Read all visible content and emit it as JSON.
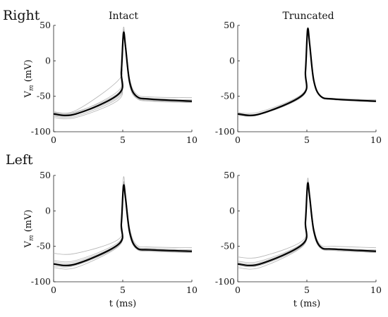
{
  "figure": {
    "row_titles": [
      "Right",
      "Left"
    ],
    "col_titles": [
      "Intact",
      "Truncated"
    ]
  },
  "chart_data": [
    {
      "type": "line",
      "row": 0,
      "col": 0,
      "title": "Intact",
      "row_title": "Right",
      "xlabel": "",
      "ylabel": "V_m (mV)",
      "xlim": [
        0,
        10
      ],
      "ylim": [
        -100,
        50
      ],
      "xticks": [
        "0",
        "5",
        "10"
      ],
      "yticks": [
        "50",
        "0",
        "-50",
        "-100"
      ],
      "series": [
        {
          "role": "mean",
          "x": [
            0,
            1.6,
            4.7,
            4.9,
            5.05,
            5.2,
            5.5,
            6.0,
            7.0,
            10
          ],
          "y": [
            -75,
            -75,
            -47,
            -15,
            39,
            20,
            -30,
            -50,
            -54,
            -57
          ]
        }
      ],
      "trials": [
        {
          "x": [
            0,
            1.6,
            4.7,
            4.9,
            5.05,
            5.2,
            5.5,
            6.0,
            7.0,
            10
          ],
          "y": [
            -72,
            -70,
            -27,
            0,
            47,
            25,
            -25,
            -47,
            -51,
            -52
          ]
        },
        {
          "x": [
            0,
            1.6,
            4.7,
            4.9,
            5.05,
            5.2,
            5.5,
            6.0,
            7.0,
            10
          ],
          "y": [
            -74,
            -73,
            -42,
            -10,
            43,
            22,
            -28,
            -49,
            -53,
            -55
          ]
        },
        {
          "x": [
            0,
            1.6,
            4.7,
            4.9,
            5.05,
            5.2,
            5.5,
            6.0,
            7.0,
            10
          ],
          "y": [
            -77,
            -76,
            -50,
            -20,
            37,
            18,
            -32,
            -51,
            -55,
            -57
          ]
        },
        {
          "x": [
            0,
            1.6,
            4.7,
            4.9,
            5.05,
            5.2,
            5.5,
            6.0,
            7.0,
            10
          ],
          "y": [
            -78,
            -78,
            -52,
            -22,
            35,
            17,
            -33,
            -52,
            -56,
            -58
          ]
        },
        {
          "x": [
            0,
            1.6,
            4.7,
            4.9,
            5.05,
            5.2,
            5.5,
            6.0,
            7.0,
            10
          ],
          "y": [
            -80,
            -80,
            -55,
            -25,
            33,
            15,
            -35,
            -53,
            -57,
            -59
          ]
        },
        {
          "x": [
            0,
            1.6,
            4.7,
            4.9,
            5.05,
            5.2,
            5.5,
            6.0,
            7.0,
            10
          ],
          "y": [
            -73,
            -72,
            -45,
            -12,
            41,
            21,
            -29,
            -50,
            -54,
            -56
          ]
        },
        {
          "x": [
            0,
            1.6,
            4.7,
            4.9,
            5.05,
            5.2,
            5.5,
            6.0,
            7.0,
            10
          ],
          "y": [
            -76,
            -75,
            -48,
            -18,
            39,
            19,
            -30,
            -50,
            -55,
            -57
          ]
        }
      ]
    },
    {
      "type": "line",
      "row": 0,
      "col": 1,
      "title": "Truncated",
      "row_title": "Right",
      "xlabel": "",
      "ylabel": "",
      "xlim": [
        0,
        10
      ],
      "ylim": [
        -100,
        50
      ],
      "xticks": [
        "0",
        "5",
        "10"
      ],
      "yticks": [
        "50",
        "0",
        "-50",
        "-100"
      ],
      "series": [
        {
          "role": "mean",
          "x": [
            0,
            1.6,
            4.7,
            4.9,
            5.05,
            5.2,
            5.5,
            6.0,
            7.0,
            10
          ],
          "y": [
            -75,
            -75,
            -48,
            -15,
            44,
            24,
            -28,
            -50,
            -54,
            -57
          ]
        }
      ],
      "trials": [
        {
          "x": [
            0,
            1.6,
            4.7,
            4.9,
            5.05,
            5.2,
            5.5,
            6.0,
            7.0,
            10
          ],
          "y": [
            -73,
            -72,
            -46,
            -12,
            46,
            26,
            -26,
            -49,
            -53,
            -55
          ]
        },
        {
          "x": [
            0,
            1.6,
            4.7,
            4.9,
            5.05,
            5.2,
            5.5,
            6.0,
            7.0,
            10
          ],
          "y": [
            -77,
            -76,
            -50,
            -18,
            42,
            22,
            -30,
            -51,
            -55,
            -58
          ]
        },
        {
          "x": [
            0,
            1.6,
            4.7,
            4.9,
            5.05,
            5.2,
            5.5,
            6.0,
            7.0,
            10
          ],
          "y": [
            -74,
            -74,
            -47,
            -14,
            45,
            25,
            -27,
            -50,
            -54,
            -56
          ]
        },
        {
          "x": [
            0,
            1.6,
            4.7,
            4.9,
            5.05,
            5.2,
            5.5,
            6.0,
            7.0,
            10
          ],
          "y": [
            -76,
            -75,
            -49,
            -16,
            43,
            23,
            -29,
            -50,
            -55,
            -57
          ]
        }
      ]
    },
    {
      "type": "line",
      "row": 1,
      "col": 0,
      "title": "",
      "row_title": "Left",
      "xlabel": "t (ms)",
      "ylabel": "V_m (mV)",
      "xlim": [
        0,
        10
      ],
      "ylim": [
        -100,
        50
      ],
      "xticks": [
        "0",
        "5",
        "10"
      ],
      "yticks": [
        "50",
        "0",
        "-50",
        "-100"
      ],
      "series": [
        {
          "role": "mean",
          "x": [
            0,
            1.6,
            4.7,
            4.9,
            5.05,
            5.2,
            5.5,
            6.0,
            7.0,
            10
          ],
          "y": [
            -75,
            -75,
            -47,
            -18,
            35,
            18,
            -30,
            -52,
            -55,
            -57
          ]
        }
      ],
      "trials": [
        {
          "x": [
            0,
            1.6,
            4.7,
            4.9,
            5.05,
            5.2,
            5.5,
            6.0,
            7.0,
            10
          ],
          "y": [
            -60,
            -60,
            -40,
            -10,
            47,
            26,
            -24,
            -48,
            -51,
            -52
          ]
        },
        {
          "x": [
            0,
            1.6,
            4.7,
            4.9,
            5.05,
            5.2,
            5.5,
            6.0,
            7.0,
            10
          ],
          "y": [
            -70,
            -70,
            -44,
            -14,
            40,
            21,
            -27,
            -50,
            -53,
            -55
          ]
        },
        {
          "x": [
            0,
            1.6,
            4.7,
            4.9,
            5.05,
            5.2,
            5.5,
            6.0,
            7.0,
            10
          ],
          "y": [
            -72,
            -72,
            -46,
            -16,
            38,
            20,
            -28,
            -51,
            -54,
            -56
          ]
        },
        {
          "x": [
            0,
            1.6,
            4.7,
            4.9,
            5.05,
            5.2,
            5.5,
            6.0,
            7.0,
            10
          ],
          "y": [
            -78,
            -77,
            -49,
            -20,
            33,
            16,
            -32,
            -53,
            -56,
            -58
          ]
        },
        {
          "x": [
            0,
            1.6,
            4.7,
            4.9,
            5.05,
            5.2,
            5.5,
            6.0,
            7.0,
            10
          ],
          "y": [
            -80,
            -80,
            -50,
            -22,
            31,
            14,
            -34,
            -54,
            -57,
            -59
          ]
        },
        {
          "x": [
            0,
            1.6,
            4.7,
            4.9,
            5.05,
            5.2,
            5.5,
            6.0,
            7.0,
            10
          ],
          "y": [
            -74,
            -74,
            -47,
            -17,
            36,
            18,
            -30,
            -52,
            -55,
            -57
          ]
        },
        {
          "x": [
            0,
            1.6,
            4.7,
            4.9,
            5.05,
            5.2,
            5.5,
            6.0,
            7.0,
            10
          ],
          "y": [
            -76,
            -76,
            -48,
            -19,
            34,
            17,
            -31,
            -52,
            -56,
            -58
          ]
        }
      ]
    },
    {
      "type": "line",
      "row": 1,
      "col": 1,
      "title": "",
      "row_title": "Left",
      "xlabel": "t (ms)",
      "ylabel": "",
      "xlim": [
        0,
        10
      ],
      "ylim": [
        -100,
        50
      ],
      "xticks": [
        "0",
        "5",
        "10"
      ],
      "yticks": [
        "50",
        "0",
        "-50",
        "-100"
      ],
      "series": [
        {
          "role": "mean",
          "x": [
            0,
            1.6,
            4.7,
            4.9,
            5.05,
            5.2,
            5.5,
            6.0,
            7.0,
            10
          ],
          "y": [
            -75,
            -75,
            -47,
            -15,
            38,
            20,
            -28,
            -51,
            -54,
            -57
          ]
        }
      ],
      "trials": [
        {
          "x": [
            0,
            1.6,
            4.7,
            4.9,
            5.05,
            5.2,
            5.5,
            6.0,
            7.0,
            10
          ],
          "y": [
            -65,
            -65,
            -42,
            -10,
            45,
            25,
            -24,
            -48,
            -50,
            -52
          ]
        },
        {
          "x": [
            0,
            1.6,
            4.7,
            4.9,
            5.05,
            5.2,
            5.5,
            6.0,
            7.0,
            10
          ],
          "y": [
            -71,
            -71,
            -45,
            -13,
            41,
            22,
            -27,
            -50,
            -53,
            -55
          ]
        },
        {
          "x": [
            0,
            1.6,
            4.7,
            4.9,
            5.05,
            5.2,
            5.5,
            6.0,
            7.0,
            10
          ],
          "y": [
            -77,
            -77,
            -49,
            -17,
            35,
            18,
            -30,
            -52,
            -55,
            -58
          ]
        },
        {
          "x": [
            0,
            1.6,
            4.7,
            4.9,
            5.05,
            5.2,
            5.5,
            6.0,
            7.0,
            10
          ],
          "y": [
            -80,
            -80,
            -50,
            -19,
            33,
            16,
            -32,
            -53,
            -56,
            -59
          ]
        },
        {
          "x": [
            0,
            1.6,
            4.7,
            4.9,
            5.05,
            5.2,
            5.5,
            6.0,
            7.0,
            10
          ],
          "y": [
            -73,
            -73,
            -46,
            -14,
            39,
            21,
            -28,
            -51,
            -54,
            -56
          ]
        }
      ]
    }
  ]
}
